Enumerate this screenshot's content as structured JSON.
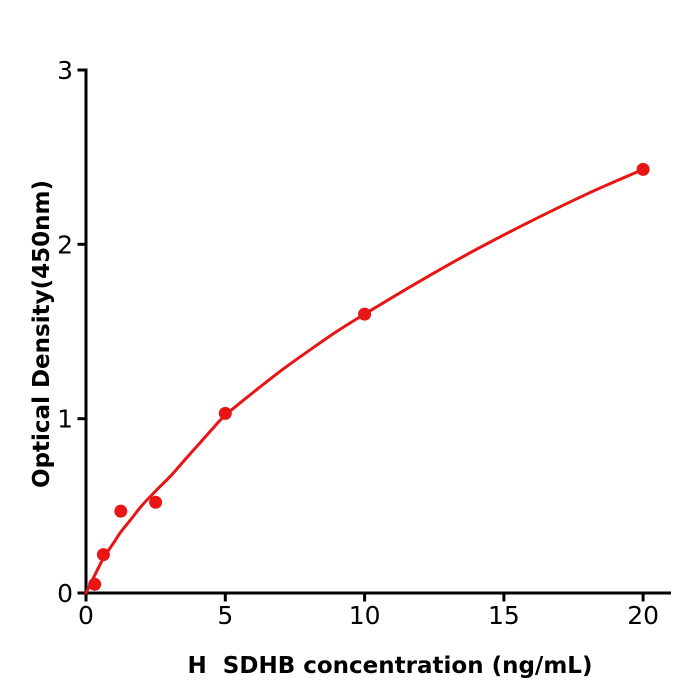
{
  "page": {
    "background_color": "#ffffff"
  },
  "chart_data": {
    "type": "scatter",
    "title": "",
    "xlabel": "H  SDHB concentration (ng/mL)",
    "ylabel": "Optical Density(450nm)",
    "xlim": [
      0,
      21
    ],
    "ylim": [
      0,
      3
    ],
    "xticks": [
      0,
      5,
      10,
      15,
      20
    ],
    "yticks": [
      0,
      1,
      2,
      3
    ],
    "grid": false,
    "legend": null,
    "marker_color": "#e91515",
    "line_color": "#e91515",
    "axis_color": "#000000",
    "points": [
      {
        "x": 0.313,
        "y": 0.05
      },
      {
        "x": 0.625,
        "y": 0.22
      },
      {
        "x": 1.25,
        "y": 0.47
      },
      {
        "x": 2.5,
        "y": 0.52
      },
      {
        "x": 5,
        "y": 1.03
      },
      {
        "x": 10,
        "y": 1.6
      },
      {
        "x": 20,
        "y": 2.43
      }
    ],
    "fit_curve": [
      [
        0,
        0.0
      ],
      [
        0.31,
        0.1
      ],
      [
        0.63,
        0.2
      ],
      [
        1.0,
        0.29
      ],
      [
        1.25,
        0.35
      ],
      [
        1.6,
        0.42
      ],
      [
        2.0,
        0.5
      ],
      [
        2.5,
        0.585
      ],
      [
        3.0,
        0.665
      ],
      [
        3.5,
        0.755
      ],
      [
        4.0,
        0.845
      ],
      [
        4.5,
        0.935
      ],
      [
        5.0,
        1.02
      ],
      [
        6.0,
        1.15
      ],
      [
        7.0,
        1.275
      ],
      [
        8.0,
        1.39
      ],
      [
        9.0,
        1.5
      ],
      [
        10,
        1.6
      ],
      [
        12,
        1.79
      ],
      [
        14,
        1.97
      ],
      [
        16,
        2.135
      ],
      [
        18,
        2.29
      ],
      [
        20,
        2.43
      ]
    ]
  }
}
